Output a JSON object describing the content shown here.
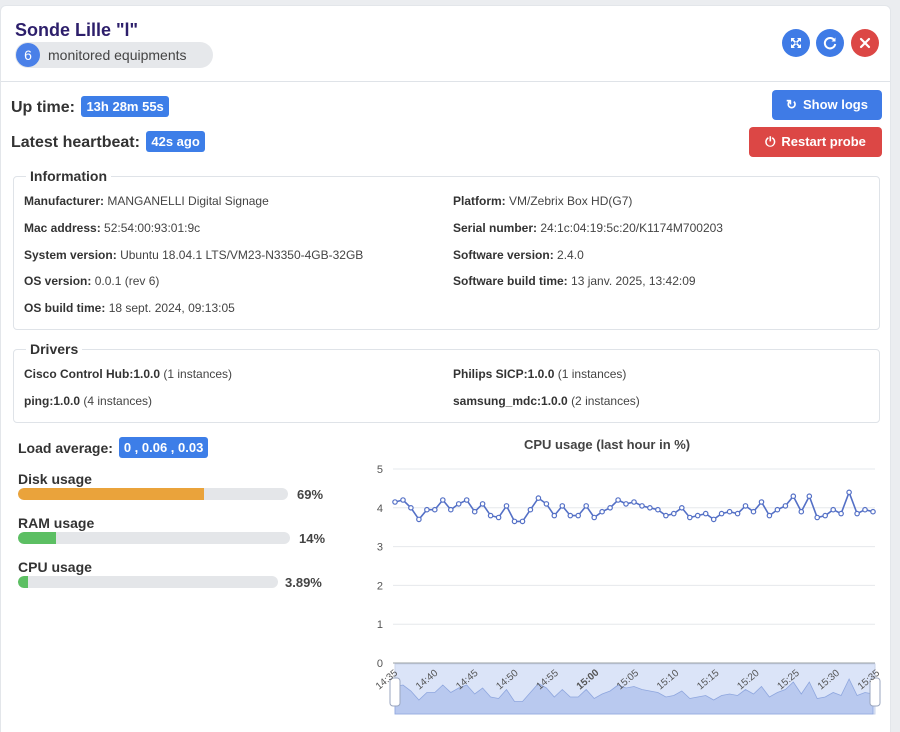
{
  "header": {
    "title": "Sonde Lille \"l\"",
    "equipment_count": "6",
    "equipment_label": "monitored equipments",
    "fullscreen_icon": "fullscreen-icon",
    "refresh_icon": "refresh-icon",
    "close_icon": "close-icon"
  },
  "status": {
    "uptime_label": "Up time:",
    "uptime_value": "13h 28m 55s",
    "heartbeat_label": "Latest heartbeat:",
    "heartbeat_value": "42s ago"
  },
  "actions": {
    "show_logs": "Show logs",
    "restart_probe": "Restart probe"
  },
  "information": {
    "legend": "Information",
    "items": [
      {
        "key": "Manufacturer:",
        "value": "MANGANELLI Digital Signage"
      },
      {
        "key": "Platform:",
        "value": "VM/Zebrix Box HD(G7)"
      },
      {
        "key": "Mac address:",
        "value": "52:54:00:93:01:9c"
      },
      {
        "key": "Serial number:",
        "value": "24:1c:04:19:5c:20/K1174M700203"
      },
      {
        "key": "System version:",
        "value": "Ubuntu 18.04.1 LTS/VM23-N3350-4GB-32GB"
      },
      {
        "key": "Software version:",
        "value": "2.4.0"
      },
      {
        "key": "OS version:",
        "value": "0.0.1 (rev 6)"
      },
      {
        "key": "Software build time:",
        "value": "13 janv. 2025, 13:42:09"
      },
      {
        "key": "OS build time:",
        "value": "18 sept. 2024, 09:13:05"
      }
    ]
  },
  "drivers": {
    "legend": "Drivers",
    "items": [
      {
        "key": "Cisco Control Hub:1.0.0",
        "value": "(1 instances)"
      },
      {
        "key": "Philips SICP:1.0.0",
        "value": "(1 instances)"
      },
      {
        "key": "ping:1.0.0",
        "value": "(4 instances)"
      },
      {
        "key": "samsung_mdc:1.0.0",
        "value": "(2 instances)"
      }
    ]
  },
  "load": {
    "label": "Load average:",
    "value": "0 , 0.06 , 0.03"
  },
  "usage": {
    "disk": {
      "label": "Disk usage",
      "value": "69%",
      "fraction": 0.69,
      "color": "#eaa33b"
    },
    "ram": {
      "label": "RAM usage",
      "value": "14%",
      "fraction": 0.14,
      "color": "#5cbf63"
    },
    "cpu": {
      "label": "CPU usage",
      "value": "3.89%",
      "fraction": 0.0389,
      "color": "#5cbf63"
    }
  },
  "chart_data": {
    "type": "line",
    "title": "CPU usage (last hour in %)",
    "ylim": [
      0,
      5
    ],
    "yticks": [
      "0",
      "1",
      "2",
      "3",
      "4",
      "5"
    ],
    "xticks": [
      "14:35",
      "14:40",
      "14:45",
      "14:50",
      "14:55",
      "15:00",
      "15:05",
      "15:10",
      "15:15",
      "15:20",
      "15:25",
      "15:30",
      "15:35"
    ],
    "grid": true,
    "line_color": "#5470c6",
    "series": [
      {
        "values": [
          4.15,
          4.2,
          4.0,
          3.7,
          3.95,
          3.95,
          4.2,
          3.95,
          4.1,
          4.2,
          3.9,
          4.1,
          3.8,
          3.75,
          4.05,
          3.65,
          3.65,
          3.95,
          4.25,
          4.1,
          3.8,
          4.05,
          3.8,
          3.8,
          4.05,
          3.75,
          3.9,
          4.0,
          4.2,
          4.1,
          4.15,
          4.05,
          4.0,
          3.95,
          3.8,
          3.85,
          4.0,
          3.75,
          3.8,
          3.85,
          3.7,
          3.85,
          3.9,
          3.85,
          4.05,
          3.9,
          4.15,
          3.8,
          3.95,
          4.05,
          4.3,
          3.9,
          4.3,
          3.75,
          3.8,
          3.95,
          3.85,
          4.4,
          3.85,
          3.95,
          3.9
        ]
      }
    ]
  }
}
